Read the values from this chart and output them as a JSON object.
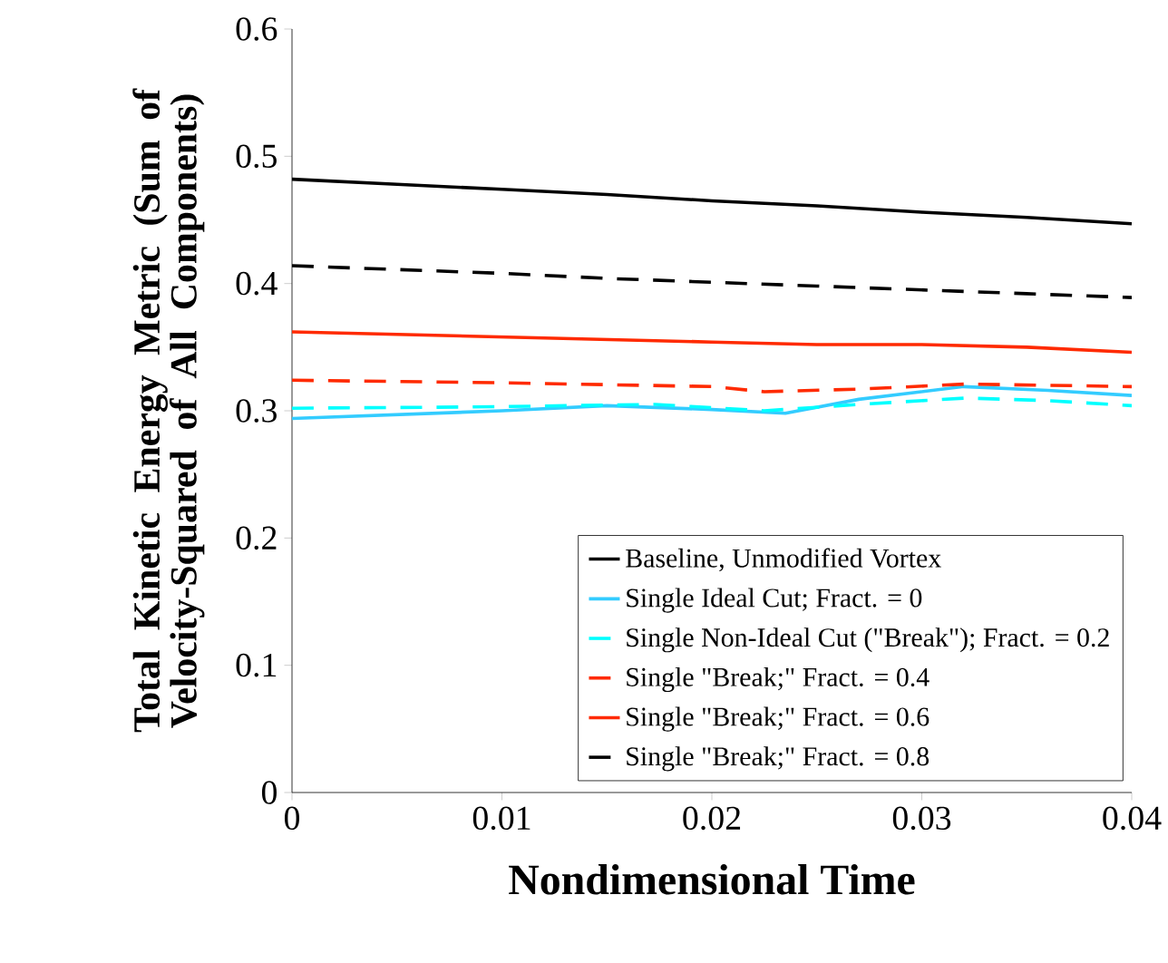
{
  "chart_data": {
    "type": "line",
    "xlabel": "Nondimensional Time",
    "ylabel": "Total Kinetic Energy Metric (Sum of Velocity-Squared of All Components)",
    "xlim": [
      0,
      0.04
    ],
    "ylim": [
      0,
      0.6
    ],
    "xticks": [
      0,
      0.01,
      0.02,
      0.03,
      0.04
    ],
    "yticks": [
      0,
      0.1,
      0.2,
      0.3,
      0.4,
      0.5,
      0.6
    ],
    "grid": false,
    "legend": "bottom right",
    "marker": "none",
    "series": [
      {
        "name": "Baseline, Unmodified Vortex",
        "color": "#000000",
        "line_style": "solid",
        "x": [
          0,
          0.005,
          0.01,
          0.015,
          0.02,
          0.025,
          0.03,
          0.035,
          0.04
        ],
        "values": [
          0.482,
          0.478,
          0.474,
          0.47,
          0.465,
          0.461,
          0.456,
          0.452,
          0.447
        ]
      },
      {
        "name": "Single Ideal Cut; Fract. = 0",
        "color": "#33ccff",
        "line_style": "solid",
        "x": [
          0,
          0.005,
          0.01,
          0.015,
          0.02,
          0.0235,
          0.027,
          0.032,
          0.036,
          0.04
        ],
        "values": [
          0.294,
          0.297,
          0.3,
          0.304,
          0.301,
          0.298,
          0.309,
          0.319,
          0.316,
          0.312
        ]
      },
      {
        "name": "Single Non-Ideal Cut (\"Break\"); Fract. = 0.2",
        "color": "#00ffff",
        "line_style": "dashed",
        "x": [
          0,
          0.0087,
          0.0173,
          0.0225,
          0.027,
          0.0321,
          0.036,
          0.04
        ],
        "values": [
          0.302,
          0.303,
          0.305,
          0.3,
          0.305,
          0.31,
          0.308,
          0.304
        ]
      },
      {
        "name": "Single \"Break;\" Fract. = 0.4",
        "color": "#ff2a00",
        "line_style": "dashed",
        "x": [
          0,
          0.01,
          0.02,
          0.0225,
          0.027,
          0.0321,
          0.04
        ],
        "values": [
          0.324,
          0.322,
          0.319,
          0.315,
          0.317,
          0.321,
          0.319
        ]
      },
      {
        "name": "Single \"Break;\" Fract. = 0.6",
        "color": "#ff2a00",
        "line_style": "solid",
        "x": [
          0,
          0.005,
          0.01,
          0.015,
          0.02,
          0.025,
          0.03,
          0.035,
          0.04
        ],
        "values": [
          0.362,
          0.36,
          0.358,
          0.356,
          0.354,
          0.352,
          0.352,
          0.35,
          0.346
        ]
      },
      {
        "name": "Single \"Break;\" Fract. = 0.8",
        "color": "#000000",
        "line_style": "dashed",
        "x": [
          0,
          0.005,
          0.01,
          0.015,
          0.02,
          0.025,
          0.03,
          0.035,
          0.04
        ],
        "values": [
          0.414,
          0.411,
          0.408,
          0.404,
          0.401,
          0.398,
          0.395,
          0.392,
          0.389
        ]
      }
    ]
  }
}
